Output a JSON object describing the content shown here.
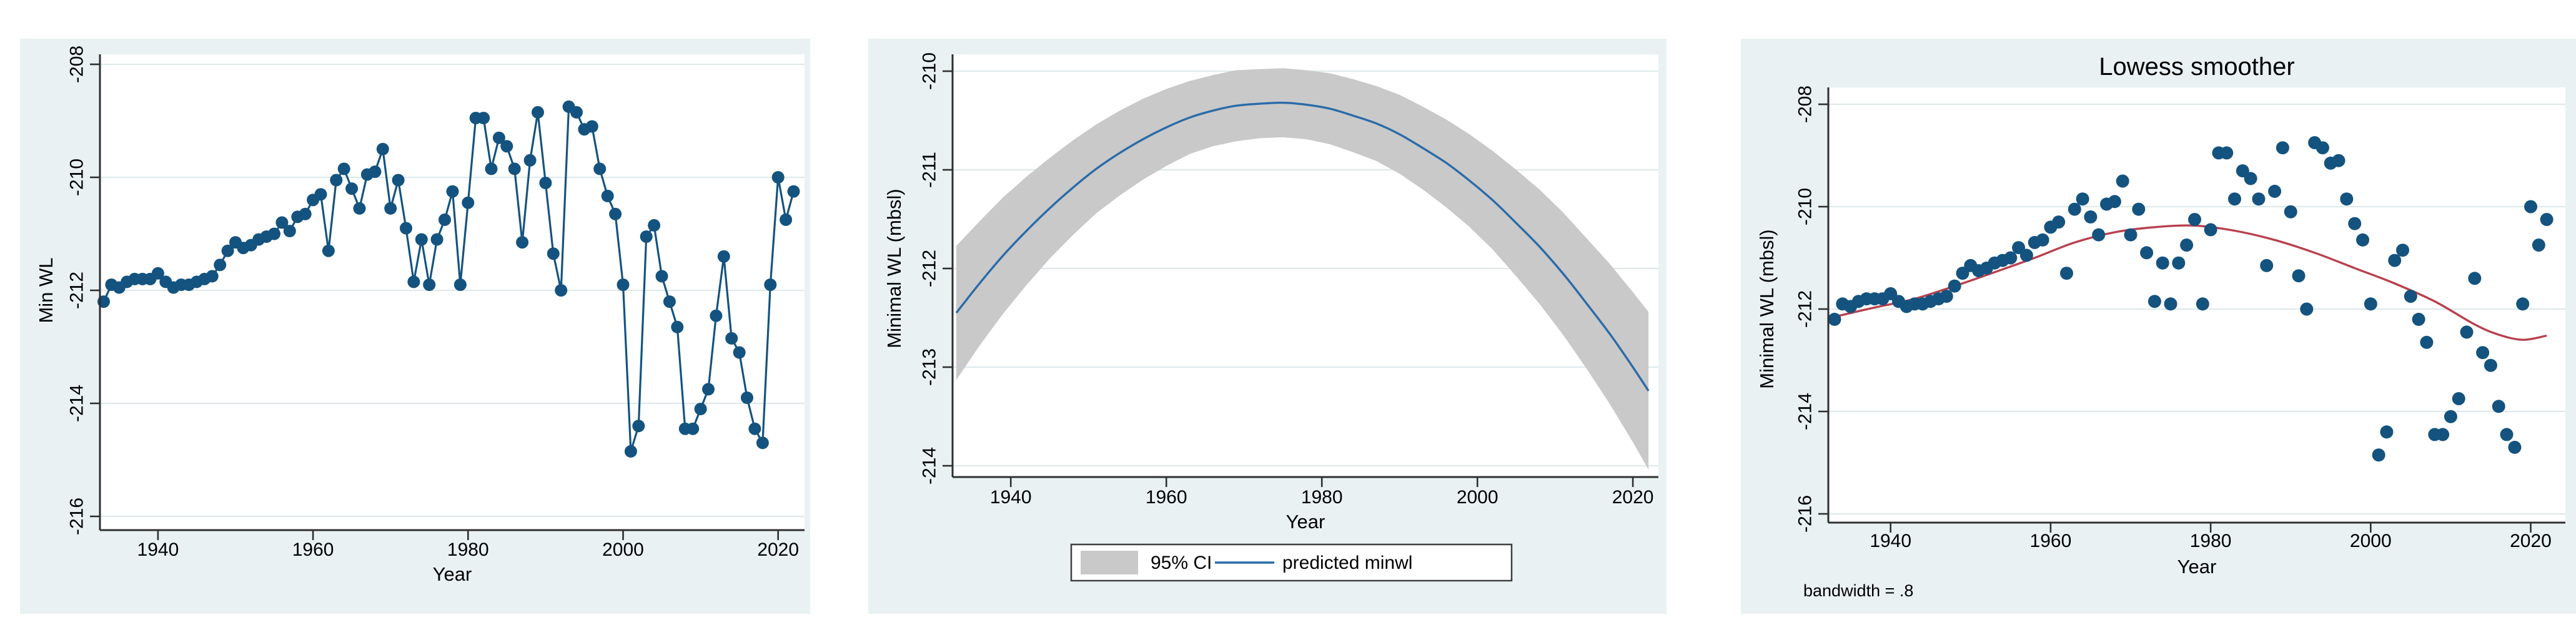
{
  "style": {
    "page_bg": "#FFFFFF",
    "card_bg": "#E9F1F2",
    "plot_bg": "#FFFFFF",
    "grid_color": "#DFEAEC",
    "axis_color": "#2F2F2F",
    "text_color": "#000000",
    "marker_navy": "#14537F",
    "fit_blue": "#2A6BA8",
    "ci_gray": "#C9C9C9",
    "lowess_red": "#B8414E",
    "title_navy": "#1A416B",
    "legend_border": "#3F3F3F"
  },
  "chart_data": [
    {
      "type": "line",
      "title": "",
      "xlabel": "Year",
      "ylabel": "Min WL",
      "xticks": [
        1940,
        1960,
        1980,
        2000,
        2020
      ],
      "yticks": [
        -208,
        -210,
        -212,
        -214,
        -216
      ],
      "xlim": [
        1932,
        2024
      ],
      "ylim": [
        -216.3,
        -207.8
      ],
      "grid": "horizontal",
      "legend_position": "none",
      "marker_color": "#14537F",
      "line_color": "#14537F",
      "years": [
        1933,
        1934,
        1935,
        1936,
        1937,
        1938,
        1939,
        1940,
        1941,
        1942,
        1943,
        1944,
        1945,
        1946,
        1947,
        1948,
        1949,
        1950,
        1951,
        1952,
        1953,
        1954,
        1955,
        1956,
        1957,
        1958,
        1959,
        1960,
        1961,
        1962,
        1963,
        1964,
        1965,
        1966,
        1967,
        1968,
        1969,
        1970,
        1971,
        1972,
        1973,
        1974,
        1975,
        1976,
        1977,
        1978,
        1979,
        1980,
        1981,
        1982,
        1983,
        1984,
        1985,
        1986,
        1987,
        1988,
        1989,
        1990,
        1991,
        1992,
        1993,
        1994,
        1995,
        1996,
        1997,
        1998,
        1999,
        2000,
        2001,
        2002,
        2003,
        2004,
        2005,
        2006,
        2007,
        2008,
        2009,
        2010,
        2011,
        2012,
        2013,
        2014,
        2015,
        2016,
        2017,
        2018,
        2019,
        2020,
        2021,
        2022
      ],
      "values": [
        -212.2,
        -211.9,
        -211.95,
        -211.85,
        -211.8,
        -211.8,
        -211.8,
        -211.7,
        -211.85,
        -211.95,
        -211.9,
        -211.9,
        -211.85,
        -211.8,
        -211.75,
        -211.55,
        -211.3,
        -211.15,
        -211.25,
        -211.2,
        -211.1,
        -211.05,
        -211.0,
        -210.8,
        -210.95,
        -210.7,
        -210.65,
        -210.4,
        -210.3,
        -211.3,
        -210.05,
        -209.85,
        -210.2,
        -210.55,
        -209.95,
        -209.9,
        -209.5,
        -210.55,
        -210.05,
        -210.9,
        -211.85,
        -211.1,
        -211.9,
        -211.1,
        -210.75,
        -210.25,
        -211.9,
        -210.45,
        -208.95,
        -208.95,
        -209.85,
        -209.3,
        -209.45,
        -209.85,
        -211.15,
        -209.7,
        -208.85,
        -210.1,
        -211.35,
        -212.0,
        -208.75,
        -208.85,
        -209.15,
        -209.1,
        -209.85,
        -210.33,
        -210.65,
        -211.9,
        -214.85,
        -214.4,
        -211.05,
        -210.85,
        -211.75,
        -212.2,
        -212.65,
        -214.45,
        -214.45,
        -214.1,
        -213.75,
        -212.45,
        -211.4,
        -212.85,
        -213.1,
        -213.9,
        -214.45,
        -214.7,
        -211.9,
        -210.0,
        -210.75,
        -210.25
      ]
    },
    {
      "type": "area",
      "title": "",
      "xlabel": "Year",
      "ylabel": "Minimal WL (mbsl)",
      "xticks": [
        1940,
        1960,
        1980,
        2000,
        2020
      ],
      "yticks": [
        -210,
        -211,
        -212,
        -213,
        -214
      ],
      "xlim": [
        1932,
        2024
      ],
      "ylim": [
        -214.2,
        -209.8
      ],
      "grid": "horizontal",
      "legend_position": "bottom",
      "band_color": "#C9C9C9",
      "line_color": "#2A6BA8",
      "legend": [
        {
          "swatch": "area",
          "color": "#C9C9C9",
          "label": "95% CI"
        },
        {
          "swatch": "line",
          "color": "#2A6BA8",
          "label": "predicted minwl"
        }
      ],
      "fit_years": [
        1933,
        1936,
        1939,
        1942,
        1945,
        1948,
        1951,
        1954,
        1957,
        1960,
        1963,
        1966,
        1969,
        1972,
        1975,
        1978,
        1981,
        1984,
        1987,
        1990,
        1993,
        1996,
        1999,
        2002,
        2005,
        2008,
        2011,
        2014,
        2017,
        2020,
        2022
      ],
      "fit_values": [
        -212.45,
        -212.15,
        -211.87,
        -211.62,
        -211.39,
        -211.18,
        -210.99,
        -210.83,
        -210.69,
        -210.57,
        -210.47,
        -210.4,
        -210.35,
        -210.33,
        -210.32,
        -210.34,
        -210.38,
        -210.45,
        -210.53,
        -210.64,
        -210.78,
        -210.93,
        -211.11,
        -211.31,
        -211.54,
        -211.78,
        -212.05,
        -212.35,
        -212.66,
        -213.0,
        -213.24
      ],
      "ci_upper": [
        -211.77,
        -211.52,
        -211.28,
        -211.07,
        -210.88,
        -210.7,
        -210.54,
        -210.4,
        -210.28,
        -210.18,
        -210.1,
        -210.04,
        -209.99,
        -209.98,
        -209.97,
        -209.99,
        -210.02,
        -210.08,
        -210.15,
        -210.24,
        -210.36,
        -210.49,
        -210.64,
        -210.81,
        -211.0,
        -211.2,
        -211.43,
        -211.69,
        -211.95,
        -212.24,
        -212.44
      ],
      "ci_lower": [
        -213.13,
        -212.78,
        -212.46,
        -212.17,
        -211.9,
        -211.66,
        -211.44,
        -211.26,
        -211.1,
        -210.96,
        -210.84,
        -210.76,
        -210.71,
        -210.68,
        -210.67,
        -210.69,
        -210.74,
        -210.82,
        -210.91,
        -211.04,
        -211.2,
        -211.38,
        -211.58,
        -211.81,
        -212.08,
        -212.36,
        -212.67,
        -213.01,
        -213.37,
        -213.76,
        -214.04
      ]
    },
    {
      "type": "scatter",
      "title": "Lowess smoother",
      "title_color": "#1A416B",
      "note": "bandwidth = .8",
      "xlabel": "Year",
      "ylabel": "Minimal WL (mbsl)",
      "xticks": [
        1940,
        1960,
        1980,
        2000,
        2020
      ],
      "yticks": [
        -208,
        -210,
        -212,
        -214,
        -216
      ],
      "xlim": [
        1932,
        2024
      ],
      "ylim": [
        -216.3,
        -207.6
      ],
      "grid": "horizontal",
      "legend_position": "none",
      "marker_color": "#14537F",
      "lowess_color": "#B8414E",
      "years": [
        1933,
        1934,
        1935,
        1936,
        1937,
        1938,
        1939,
        1940,
        1941,
        1942,
        1943,
        1944,
        1945,
        1946,
        1947,
        1948,
        1949,
        1950,
        1951,
        1952,
        1953,
        1954,
        1955,
        1956,
        1957,
        1958,
        1959,
        1960,
        1961,
        1962,
        1963,
        1964,
        1965,
        1966,
        1967,
        1968,
        1969,
        1970,
        1971,
        1972,
        1973,
        1974,
        1975,
        1976,
        1977,
        1978,
        1979,
        1980,
        1981,
        1982,
        1983,
        1984,
        1985,
        1986,
        1987,
        1988,
        1989,
        1990,
        1991,
        1992,
        1993,
        1994,
        1995,
        1996,
        1997,
        1998,
        1999,
        2000,
        2001,
        2002,
        2003,
        2004,
        2005,
        2006,
        2007,
        2008,
        2009,
        2010,
        2011,
        2012,
        2013,
        2014,
        2015,
        2016,
        2017,
        2018,
        2019,
        2020,
        2021,
        2022
      ],
      "values": [
        -212.2,
        -211.9,
        -211.95,
        -211.85,
        -211.8,
        -211.8,
        -211.8,
        -211.7,
        -211.85,
        -211.95,
        -211.9,
        -211.9,
        -211.85,
        -211.8,
        -211.75,
        -211.55,
        -211.3,
        -211.15,
        -211.25,
        -211.2,
        -211.1,
        -211.05,
        -211.0,
        -210.8,
        -210.95,
        -210.7,
        -210.65,
        -210.4,
        -210.3,
        -211.3,
        -210.05,
        -209.85,
        -210.2,
        -210.55,
        -209.95,
        -209.9,
        -209.5,
        -210.55,
        -210.05,
        -210.9,
        -211.85,
        -211.1,
        -211.9,
        -211.1,
        -210.75,
        -210.25,
        -211.9,
        -210.45,
        -208.95,
        -208.95,
        -209.85,
        -209.3,
        -209.45,
        -209.85,
        -211.15,
        -209.7,
        -208.85,
        -210.1,
        -211.35,
        -212.0,
        -208.75,
        -208.85,
        -209.15,
        -209.1,
        -209.85,
        -210.33,
        -210.65,
        -211.9,
        -214.85,
        -214.4,
        -211.05,
        -210.85,
        -211.75,
        -212.2,
        -212.65,
        -214.45,
        -214.45,
        -214.1,
        -213.75,
        -212.45,
        -211.4,
        -212.85,
        -213.1,
        -213.9,
        -214.45,
        -214.7,
        -211.9,
        -210.0,
        -210.75,
        -210.25
      ],
      "lowess_years": [
        1933,
        1938,
        1943,
        1948,
        1953,
        1958,
        1963,
        1968,
        1973,
        1978,
        1983,
        1988,
        1993,
        1998,
        2003,
        2008,
        2013,
        2016,
        2019,
        2022
      ],
      "lowess_values": [
        -212.15,
        -211.97,
        -211.8,
        -211.55,
        -211.28,
        -211.0,
        -210.7,
        -210.5,
        -210.4,
        -210.37,
        -210.47,
        -210.65,
        -210.9,
        -211.2,
        -211.5,
        -211.85,
        -212.3,
        -212.5,
        -212.6,
        -212.52
      ]
    }
  ]
}
